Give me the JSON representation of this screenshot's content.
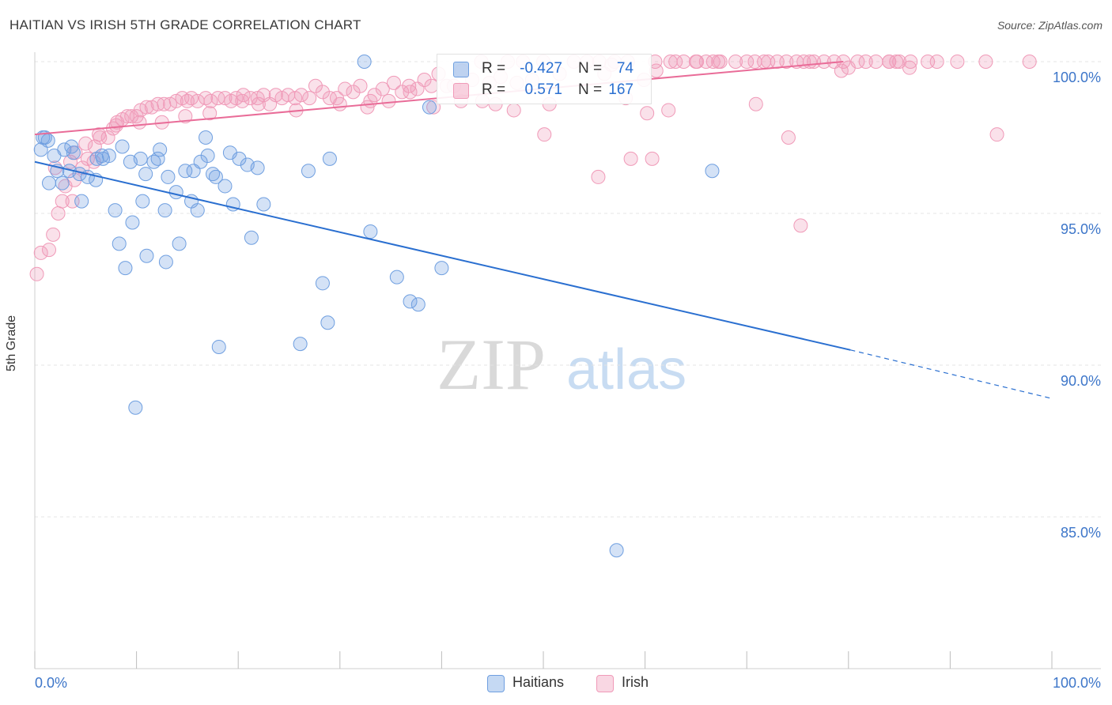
{
  "title": "HAITIAN VS IRISH 5TH GRADE CORRELATION CHART",
  "source": "Source: ZipAtlas.com",
  "watermark": {
    "zip": "ZIP",
    "atlas": "atlas"
  },
  "colors": {
    "haitians": "#6f9fe0",
    "irish": "#f09ab8",
    "haitians_line": "#2a6fd0",
    "irish_line": "#e96c98",
    "axis_text": "#3d76c9"
  },
  "stats": [
    {
      "series": "Haitians",
      "r_label": "R =",
      "r_value": "-0.427",
      "n_label": "N =",
      "n_value": "74"
    },
    {
      "series": "Irish",
      "r_label": "R =",
      "r_value": "0.571",
      "n_label": "N =",
      "n_value": "167"
    }
  ],
  "chart_data": {
    "type": "scatter",
    "title": "HAITIAN VS IRISH 5TH GRADE CORRELATION CHART",
    "xlabel": "",
    "ylabel": "5th Grade",
    "xlim": [
      0,
      100
    ],
    "ylim": [
      80.5,
      100.7
    ],
    "x_tick_labels": [
      "0.0%",
      "100.0%"
    ],
    "y_ticks": [
      85,
      90,
      95,
      100
    ],
    "y_tick_labels": [
      "85.0%",
      "90.0%",
      "95.0%",
      "100.0%"
    ],
    "grid": true,
    "legend": "bottom-center",
    "series": [
      {
        "name": "Haitians",
        "trend": {
          "x1": 0,
          "y1": 96.7,
          "x2": 80.2,
          "y2": 90.5,
          "dash_to_x": 100,
          "dash_to_y": 88.9
        },
        "points": [
          [
            0.8,
            97.5
          ],
          [
            1.0,
            97.5
          ],
          [
            1.3,
            97.4
          ],
          [
            0.6,
            97.1
          ],
          [
            1.9,
            96.9
          ],
          [
            2.9,
            97.1
          ],
          [
            3.6,
            97.2
          ],
          [
            3.8,
            97.0
          ],
          [
            2.2,
            96.4
          ],
          [
            3.4,
            96.4
          ],
          [
            4.4,
            96.3
          ],
          [
            5.2,
            96.2
          ],
          [
            6.0,
            96.1
          ],
          [
            1.4,
            96.0
          ],
          [
            2.7,
            96.0
          ],
          [
            6.1,
            96.8
          ],
          [
            6.6,
            96.9
          ],
          [
            6.7,
            96.8
          ],
          [
            7.3,
            96.9
          ],
          [
            8.6,
            97.2
          ],
          [
            9.4,
            96.7
          ],
          [
            10.4,
            96.8
          ],
          [
            11.7,
            96.7
          ],
          [
            12.1,
            96.8
          ],
          [
            12.3,
            97.1
          ],
          [
            13.1,
            96.2
          ],
          [
            10.9,
            96.3
          ],
          [
            14.8,
            96.4
          ],
          [
            15.6,
            96.4
          ],
          [
            16.3,
            96.7
          ],
          [
            16.8,
            97.5
          ],
          [
            17.0,
            96.9
          ],
          [
            17.5,
            96.3
          ],
          [
            17.8,
            96.2
          ],
          [
            18.7,
            95.9
          ],
          [
            19.2,
            97.0
          ],
          [
            20.1,
            96.8
          ],
          [
            20.9,
            96.6
          ],
          [
            21.9,
            96.5
          ],
          [
            22.5,
            95.3
          ],
          [
            26.9,
            96.4
          ],
          [
            29.0,
            96.8
          ],
          [
            32.4,
            100.0
          ],
          [
            38.8,
            98.5
          ],
          [
            4.6,
            95.4
          ],
          [
            7.9,
            95.1
          ],
          [
            10.6,
            95.4
          ],
          [
            12.8,
            95.1
          ],
          [
            13.9,
            95.7
          ],
          [
            15.4,
            95.4
          ],
          [
            16.0,
            95.1
          ],
          [
            19.5,
            95.3
          ],
          [
            9.6,
            94.7
          ],
          [
            8.3,
            94.0
          ],
          [
            14.2,
            94.0
          ],
          [
            21.3,
            94.2
          ],
          [
            11.0,
            93.6
          ],
          [
            12.9,
            93.4
          ],
          [
            8.9,
            93.2
          ],
          [
            33.0,
            94.4
          ],
          [
            35.6,
            92.9
          ],
          [
            40.0,
            93.2
          ],
          [
            28.3,
            92.7
          ],
          [
            36.9,
            92.1
          ],
          [
            37.7,
            92.0
          ],
          [
            28.8,
            91.4
          ],
          [
            26.1,
            90.7
          ],
          [
            18.1,
            90.6
          ],
          [
            66.6,
            96.4
          ],
          [
            9.9,
            88.6
          ],
          [
            57.2,
            83.9
          ]
        ]
      },
      {
        "name": "Irish",
        "trend": {
          "x1": 0,
          "y1": 97.6,
          "x2": 79.5,
          "y2": 100.0
        },
        "points": [
          [
            0.2,
            93.0
          ],
          [
            0.6,
            93.7
          ],
          [
            1.4,
            93.8
          ],
          [
            1.8,
            94.3
          ],
          [
            2.3,
            95.0
          ],
          [
            2.7,
            95.4
          ],
          [
            3.7,
            95.4
          ],
          [
            3.0,
            95.9
          ],
          [
            3.9,
            96.1
          ],
          [
            4.7,
            96.5
          ],
          [
            5.2,
            96.8
          ],
          [
            5.8,
            96.7
          ],
          [
            5.9,
            97.2
          ],
          [
            6.4,
            97.5
          ],
          [
            7.2,
            97.5
          ],
          [
            7.7,
            97.8
          ],
          [
            8.1,
            98.0
          ],
          [
            8.6,
            98.1
          ],
          [
            9.1,
            98.2
          ],
          [
            9.5,
            98.2
          ],
          [
            10.0,
            98.2
          ],
          [
            10.4,
            98.4
          ],
          [
            11.0,
            98.5
          ],
          [
            11.5,
            98.5
          ],
          [
            12.1,
            98.6
          ],
          [
            12.7,
            98.6
          ],
          [
            13.3,
            98.6
          ],
          [
            13.9,
            98.7
          ],
          [
            14.5,
            98.8
          ],
          [
            15.0,
            98.7
          ],
          [
            15.4,
            98.8
          ],
          [
            16.0,
            98.7
          ],
          [
            16.8,
            98.8
          ],
          [
            17.3,
            98.7
          ],
          [
            18.0,
            98.8
          ],
          [
            18.7,
            98.8
          ],
          [
            19.3,
            98.7
          ],
          [
            19.8,
            98.8
          ],
          [
            20.5,
            98.9
          ],
          [
            21.2,
            98.8
          ],
          [
            21.9,
            98.8
          ],
          [
            22.5,
            98.9
          ],
          [
            23.1,
            98.6
          ],
          [
            23.7,
            98.9
          ],
          [
            24.3,
            98.8
          ],
          [
            24.9,
            98.9
          ],
          [
            25.6,
            98.8
          ],
          [
            26.2,
            98.9
          ],
          [
            27.0,
            98.8
          ],
          [
            27.6,
            99.2
          ],
          [
            28.3,
            99.0
          ],
          [
            29.0,
            98.8
          ],
          [
            29.7,
            98.8
          ],
          [
            30.5,
            99.1
          ],
          [
            31.3,
            99.0
          ],
          [
            32.0,
            99.2
          ],
          [
            32.7,
            98.5
          ],
          [
            33.4,
            98.9
          ],
          [
            34.2,
            99.1
          ],
          [
            34.8,
            98.7
          ],
          [
            35.3,
            99.3
          ],
          [
            36.1,
            99.0
          ],
          [
            36.9,
            99.0
          ],
          [
            37.6,
            99.1
          ],
          [
            38.3,
            99.4
          ],
          [
            39.0,
            99.2
          ],
          [
            39.7,
            99.6
          ],
          [
            40.5,
            99.2
          ],
          [
            41.2,
            99.2
          ],
          [
            42.0,
            99.7
          ],
          [
            43.0,
            99.4
          ],
          [
            43.9,
            100.0
          ],
          [
            44.7,
            99.3
          ],
          [
            45.8,
            99.5
          ],
          [
            46.5,
            100.0
          ],
          [
            47.4,
            99.3
          ],
          [
            48.0,
            100.0
          ],
          [
            48.9,
            99.4
          ],
          [
            50.0,
            100.0
          ],
          [
            51.6,
            99.6
          ],
          [
            53.0,
            100.0
          ],
          [
            54.3,
            100.0
          ],
          [
            55.5,
            100.0
          ],
          [
            57.0,
            100.0
          ],
          [
            58.3,
            100.0
          ],
          [
            59.9,
            99.4
          ],
          [
            61.0,
            100.0
          ],
          [
            62.5,
            100.0
          ],
          [
            63.8,
            100.0
          ],
          [
            65.0,
            100.0
          ],
          [
            66.0,
            100.0
          ],
          [
            66.7,
            100.0
          ],
          [
            67.4,
            100.0
          ],
          [
            68.9,
            100.0
          ],
          [
            70.0,
            100.0
          ],
          [
            70.8,
            100.0
          ],
          [
            71.7,
            100.0
          ],
          [
            73.0,
            100.0
          ],
          [
            73.9,
            100.0
          ],
          [
            74.9,
            100.0
          ],
          [
            75.6,
            100.0
          ],
          [
            76.6,
            100.0
          ],
          [
            77.6,
            100.0
          ],
          [
            78.6,
            100.0
          ],
          [
            79.5,
            100.0
          ],
          [
            80.9,
            100.0
          ],
          [
            81.7,
            100.0
          ],
          [
            82.7,
            100.0
          ],
          [
            84.0,
            100.0
          ],
          [
            84.7,
            100.0
          ],
          [
            85.0,
            100.0
          ],
          [
            86.1,
            100.0
          ],
          [
            88.7,
            100.0
          ],
          [
            90.7,
            100.0
          ],
          [
            93.5,
            100.0
          ],
          [
            97.8,
            100.0
          ],
          [
            87.8,
            100.0
          ],
          [
            86.0,
            99.8
          ],
          [
            80.0,
            99.8
          ],
          [
            79.3,
            99.7
          ],
          [
            84.0,
            100.0
          ],
          [
            61.1,
            99.7
          ],
          [
            56.7,
            99.9
          ],
          [
            67.2,
            100.0
          ],
          [
            65.1,
            100.0
          ],
          [
            63.0,
            100.0
          ],
          [
            72.1,
            100.0
          ],
          [
            76.2,
            100.0
          ],
          [
            50.6,
            98.6
          ],
          [
            56.0,
            99.6
          ],
          [
            58.1,
            98.8
          ],
          [
            60.2,
            98.3
          ],
          [
            62.3,
            98.4
          ],
          [
            70.9,
            98.6
          ],
          [
            50.1,
            97.6
          ],
          [
            74.1,
            97.5
          ],
          [
            94.6,
            97.6
          ],
          [
            58.6,
            96.8
          ],
          [
            60.7,
            96.8
          ],
          [
            55.4,
            96.2
          ],
          [
            75.3,
            94.6
          ],
          [
            44.0,
            98.7
          ],
          [
            45.3,
            98.6
          ],
          [
            47.1,
            98.4
          ],
          [
            41.9,
            98.7
          ],
          [
            39.2,
            98.5
          ],
          [
            36.8,
            99.2
          ],
          [
            33.0,
            98.7
          ],
          [
            30.0,
            98.6
          ],
          [
            25.7,
            98.4
          ],
          [
            22.0,
            98.6
          ],
          [
            20.4,
            98.7
          ],
          [
            17.2,
            98.3
          ],
          [
            14.8,
            98.2
          ],
          [
            12.5,
            98.0
          ],
          [
            10.3,
            98.0
          ],
          [
            8.0,
            97.9
          ],
          [
            6.3,
            97.6
          ],
          [
            5.0,
            97.3
          ],
          [
            4.0,
            97.0
          ],
          [
            3.5,
            96.7
          ],
          [
            2.0,
            96.5
          ]
        ]
      }
    ]
  },
  "legend": [
    {
      "label": "Haitians"
    },
    {
      "label": "Irish"
    }
  ]
}
